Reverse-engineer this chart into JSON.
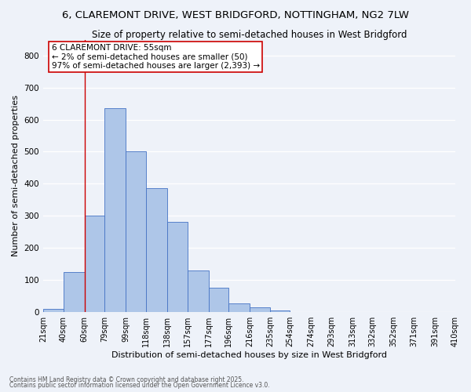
{
  "title_line1": "6, CLAREMONT DRIVE, WEST BRIDGFORD, NOTTINGHAM, NG2 7LW",
  "title_line2": "Size of property relative to semi-detached houses in West Bridgford",
  "xlabel": "Distribution of semi-detached houses by size in West Bridgford",
  "ylabel": "Number of semi-detached properties",
  "bin_labels": [
    "21sqm",
    "40sqm",
    "60sqm",
    "79sqm",
    "99sqm",
    "118sqm",
    "138sqm",
    "157sqm",
    "177sqm",
    "196sqm",
    "216sqm",
    "235sqm",
    "254sqm",
    "274sqm",
    "293sqm",
    "313sqm",
    "332sqm",
    "352sqm",
    "371sqm",
    "391sqm",
    "410sqm"
  ],
  "bar_heights": [
    10,
    125,
    300,
    635,
    500,
    385,
    280,
    130,
    75,
    25,
    13,
    5,
    0,
    0,
    0,
    0,
    0,
    0,
    0,
    0
  ],
  "bar_color": "#aec6e8",
  "bar_edge_color": "#4472c4",
  "vline_x": 60,
  "vline_color": "#cc0000",
  "annotation_title": "6 CLAREMONT DRIVE: 55sqm",
  "annotation_line2": "← 2% of semi-detached houses are smaller (50)",
  "annotation_line3": "97% of semi-detached houses are larger (2,393) →",
  "annotation_box_color": "#cc0000",
  "ylim": [
    0,
    850
  ],
  "yticks": [
    0,
    100,
    200,
    300,
    400,
    500,
    600,
    700,
    800
  ],
  "footnote1": "Contains HM Land Registry data © Crown copyright and database right 2025.",
  "footnote2": "Contains public sector information licensed under the Open Government Licence v3.0.",
  "bg_color": "#eef2f9",
  "grid_color": "#ffffff",
  "title_fontsize": 9.5,
  "subtitle_fontsize": 8.5,
  "axis_label_fontsize": 8,
  "tick_fontsize": 7,
  "annotation_fontsize": 7.5,
  "footnote_fontsize": 5.5
}
